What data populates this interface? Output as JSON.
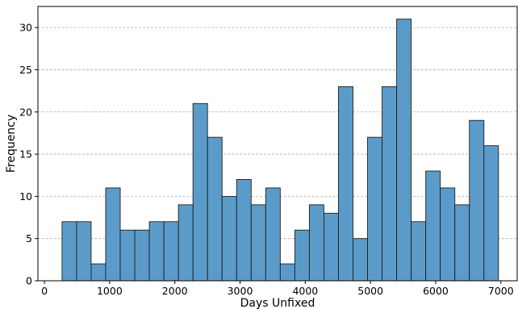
{
  "chart_data": {
    "type": "bar",
    "title": "",
    "xlabel": "Days Unfixed",
    "ylabel": "Frequency",
    "xlim": [
      -100,
      7250
    ],
    "ylim": [
      0,
      32.5
    ],
    "grid": "y-dashed",
    "bar_color": "#5b9bc9",
    "bin_edges": [
      270,
      493.1,
      716.2,
      939.3,
      1162.4,
      1385.5,
      1608.6,
      1831.7,
      2054.8,
      2277.9,
      2501,
      2724.1,
      2947.2,
      3170.3,
      3393.4,
      3616.5,
      3839.6,
      4062.7,
      4285.8,
      4508.9,
      4732,
      4955.1,
      5178.2,
      5401.3,
      5624.4,
      5847.5,
      6070.6,
      6293.7,
      6516.8,
      6739.9,
      6963
    ],
    "values": [
      7,
      7,
      2,
      11,
      6,
      6,
      7,
      7,
      9,
      21,
      17,
      10,
      12,
      9,
      11,
      2,
      6,
      9,
      8,
      23,
      5,
      17,
      23,
      31,
      7,
      13,
      11,
      9,
      19,
      16
    ],
    "x_ticks": [
      0,
      1000,
      2000,
      3000,
      4000,
      5000,
      6000,
      7000
    ],
    "y_ticks": [
      0,
      5,
      10,
      15,
      20,
      25,
      30
    ]
  }
}
